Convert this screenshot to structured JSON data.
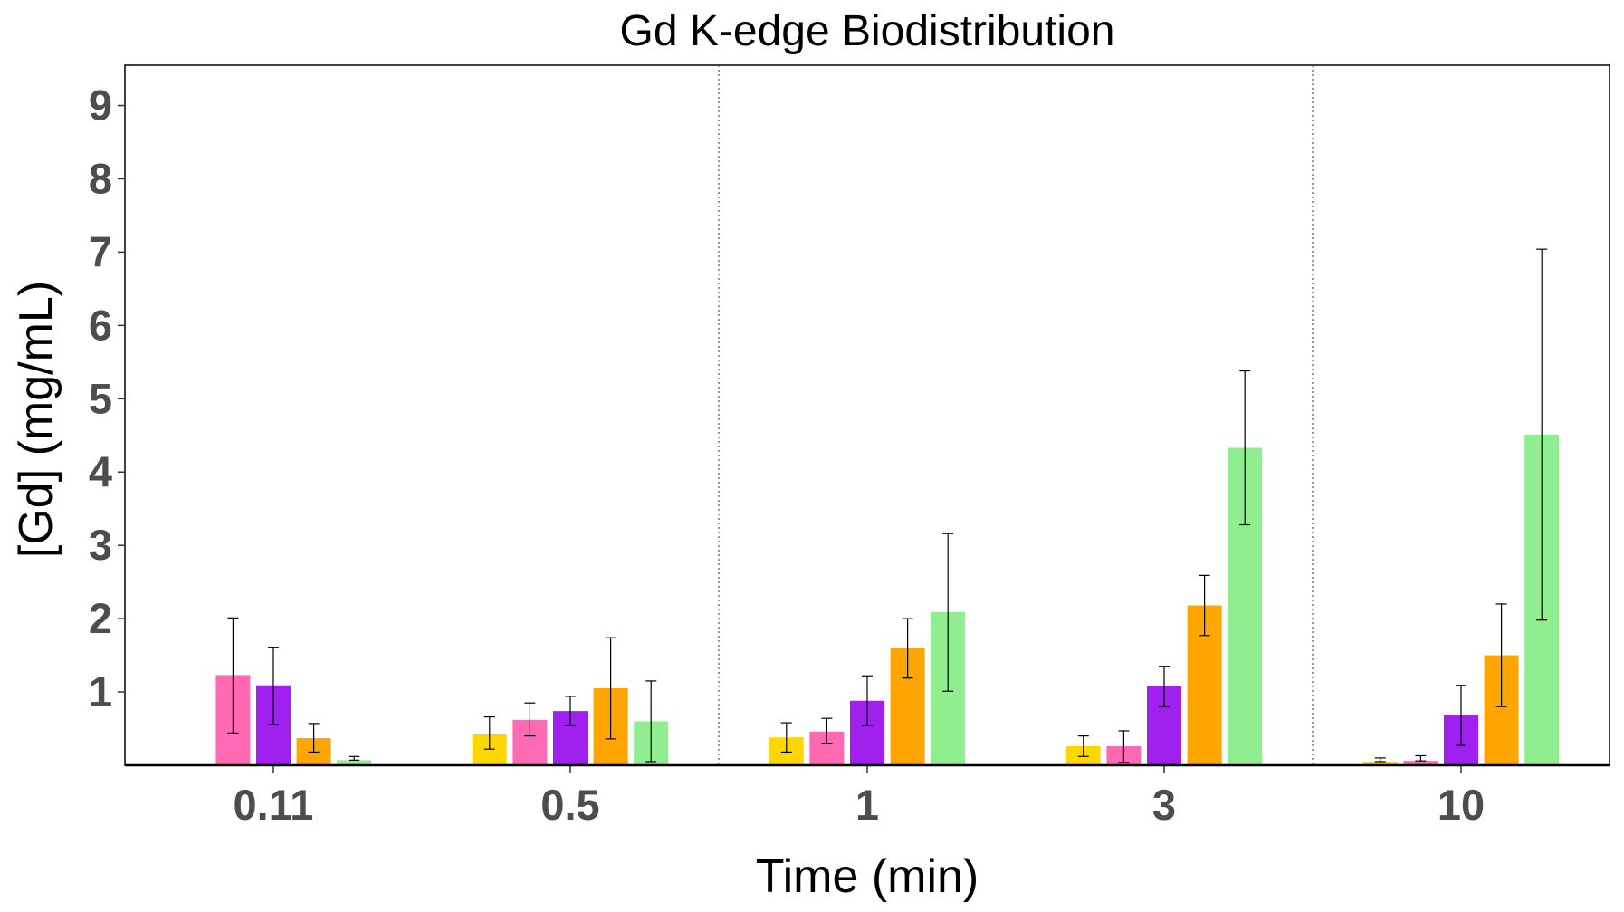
{
  "chart_data": {
    "type": "bar",
    "title": "Gd K-edge Biodistribution",
    "xlabel": "Time (min)",
    "ylabel": "[Gd] (mg/mL)",
    "categories": [
      "0.11",
      "0.5",
      "1",
      "3",
      "10"
    ],
    "yticks": [
      "1",
      "2",
      "3",
      "4",
      "5",
      "6",
      "7",
      "8",
      "9"
    ],
    "ylim": [
      0,
      9.55
    ],
    "grid": false,
    "legend": "none",
    "separators_after_category_index": [
      1,
      3
    ],
    "series": [
      {
        "color": "#FFD700",
        "values": [
          0.0,
          0.42,
          0.38,
          0.26,
          0.05
        ],
        "err_low": [
          0.0,
          0.22,
          0.18,
          0.12,
          0.05
        ],
        "err_high": [
          0.0,
          0.66,
          0.58,
          0.4,
          0.1
        ]
      },
      {
        "color": "#FF69B4",
        "values": [
          1.23,
          0.62,
          0.46,
          0.26,
          0.06
        ],
        "err_low": [
          0.44,
          0.4,
          0.3,
          0.04,
          0.06
        ],
        "err_high": [
          2.01,
          0.85,
          0.64,
          0.47,
          0.13
        ]
      },
      {
        "color": "#A020F0",
        "values": [
          1.09,
          0.74,
          0.88,
          1.08,
          0.68
        ],
        "err_low": [
          0.56,
          0.54,
          0.54,
          0.8,
          0.27
        ],
        "err_high": [
          1.61,
          0.94,
          1.22,
          1.35,
          1.09
        ]
      },
      {
        "color": "#FFA500",
        "values": [
          0.37,
          1.05,
          1.6,
          2.18,
          1.5
        ],
        "err_low": [
          0.18,
          0.36,
          1.19,
          1.77,
          0.8
        ],
        "err_high": [
          0.57,
          1.74,
          2.0,
          2.59,
          2.2
        ]
      },
      {
        "color": "#90EE90",
        "values": [
          0.07,
          0.6,
          2.09,
          4.33,
          4.51
        ],
        "err_low": [
          0.07,
          0.05,
          1.01,
          3.28,
          1.98
        ],
        "err_high": [
          0.12,
          1.15,
          3.16,
          5.38,
          7.04
        ]
      }
    ]
  }
}
